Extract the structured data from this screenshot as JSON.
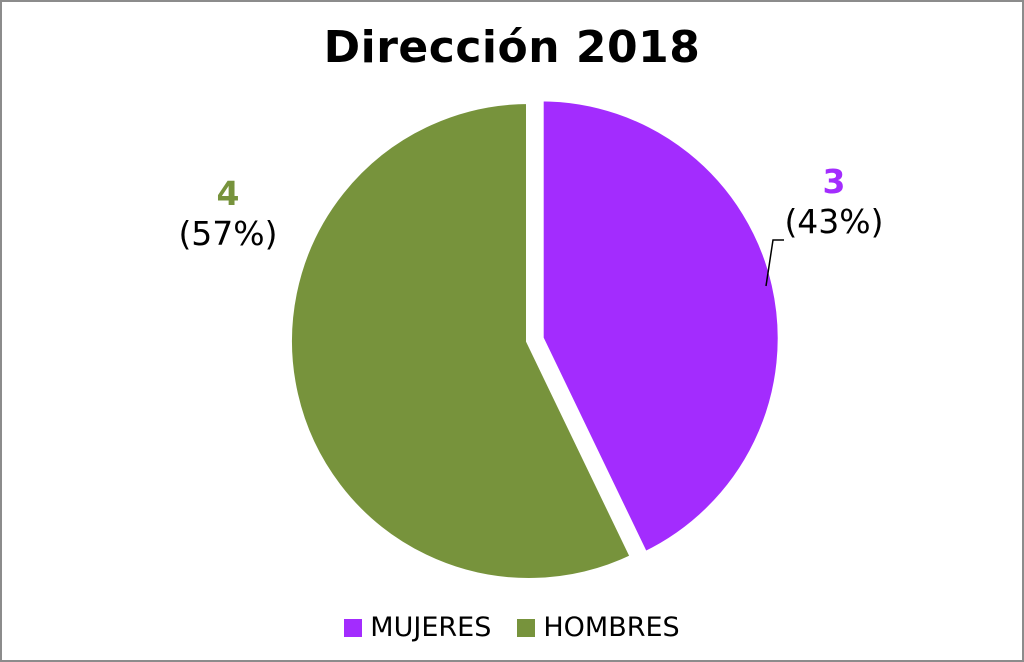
{
  "chart_data": {
    "type": "pie",
    "title": "Dirección 2018",
    "slices": [
      {
        "label": "MUJERES",
        "value": 3,
        "percent_label": "(43%)",
        "color": "#A32CFE",
        "exploded": true
      },
      {
        "label": "HOMBRES",
        "value": 4,
        "percent_label": "(57%)",
        "color": "#77933C",
        "exploded": false
      }
    ],
    "legend_placement": "bottom"
  }
}
